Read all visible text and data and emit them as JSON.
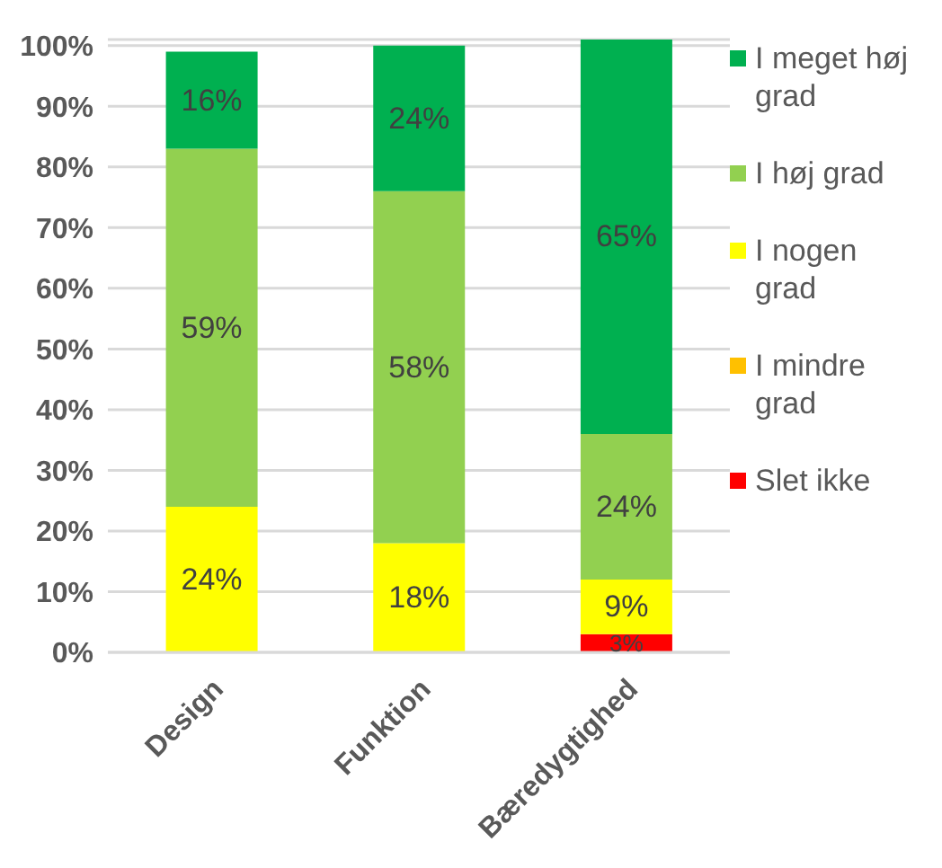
{
  "chart_data": {
    "type": "bar",
    "stacked": true,
    "categories": [
      "Design",
      "Funktion",
      "Bæredygtighed"
    ],
    "series": [
      {
        "name": "Slet ikke",
        "color": "#ff0000",
        "values": [
          0,
          0,
          3
        ],
        "value_labels": [
          null,
          null,
          "3%"
        ]
      },
      {
        "name": "I mindre grad",
        "color": "#ffc000",
        "values": [
          0,
          0,
          0
        ],
        "value_labels": [
          null,
          null,
          null
        ]
      },
      {
        "name": "I nogen grad",
        "color": "#ffff00",
        "values": [
          24,
          18,
          9
        ],
        "value_labels": [
          "24%",
          "18%",
          "9%"
        ]
      },
      {
        "name": "I høj grad",
        "color": "#92d050",
        "values": [
          59,
          58,
          24
        ],
        "value_labels": [
          "59%",
          "58%",
          "24%"
        ]
      },
      {
        "name": "I meget høj grad",
        "color": "#00b050",
        "values": [
          16,
          24,
          65
        ],
        "value_labels": [
          "16%",
          "24%",
          "65%"
        ]
      }
    ],
    "ylim": [
      0,
      101
    ],
    "yticks": [
      {
        "value": 0,
        "label": "0%"
      },
      {
        "value": 10,
        "label": "10%"
      },
      {
        "value": 20,
        "label": "20%"
      },
      {
        "value": 30,
        "label": "30%"
      },
      {
        "value": 40,
        "label": "40%"
      },
      {
        "value": 50,
        "label": "50%"
      },
      {
        "value": 60,
        "label": "60%"
      },
      {
        "value": 70,
        "label": "70%"
      },
      {
        "value": 80,
        "label": "80%"
      },
      {
        "value": 90,
        "label": "90%"
      },
      {
        "value": 100,
        "label": "100%"
      }
    ],
    "grid": "y",
    "legend": "right"
  }
}
